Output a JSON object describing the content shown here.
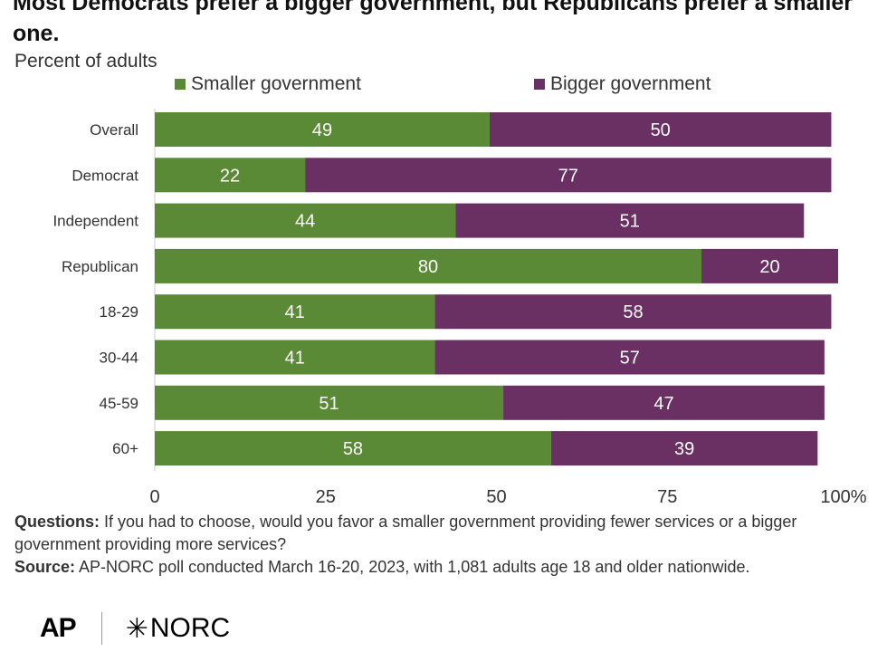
{
  "title": "Most Democrats prefer a bigger government, but Republicans prefer a smaller one.",
  "subtitle": "Percent of adults",
  "legend": [
    {
      "label": "Smaller government",
      "color": "#5a8a35"
    },
    {
      "label": "Bigger government",
      "color": "#6a2f63"
    }
  ],
  "notes": {
    "questions_label": "Questions:",
    "questions_text": "If you had to choose, would you favor a smaller government providing fewer services or a bigger government providing more services?",
    "source_label": "Source:",
    "source_text": "AP-NORC poll conducted March 16-20, 2023, with 1,081 adults age 18 and older nationwide."
  },
  "logos": {
    "ap": "AP",
    "norc": "NORC",
    "norc_icon": "norc-star-icon"
  },
  "chart_data": {
    "type": "bar",
    "orientation": "horizontal",
    "stacked": true,
    "categories": [
      "Overall",
      "Democrat",
      "Independent",
      "Republican",
      "18-29",
      "30-44",
      "45-59",
      "60+"
    ],
    "series": [
      {
        "name": "Smaller government",
        "color": "#5a8a35",
        "values": [
          49,
          22,
          44,
          80,
          41,
          41,
          51,
          58
        ]
      },
      {
        "name": "Bigger government",
        "color": "#6a2f63",
        "values": [
          50,
          77,
          51,
          20,
          58,
          57,
          47,
          39
        ]
      }
    ],
    "xlim": [
      0,
      100
    ],
    "xticks": [
      "0",
      "25",
      "50",
      "75",
      "100%"
    ],
    "data_labels": true,
    "legend_position": "top",
    "grid": false
  }
}
